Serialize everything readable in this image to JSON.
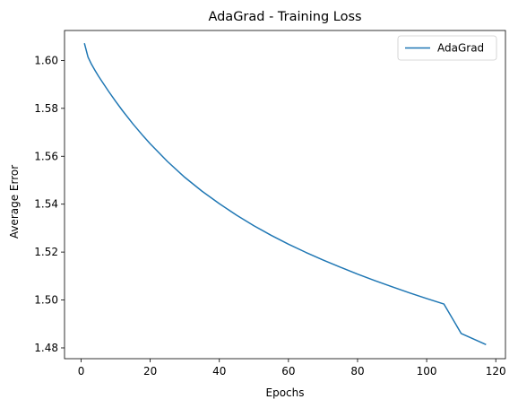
{
  "chart_data": {
    "type": "line",
    "title": "AdaGrad - Training Loss",
    "xlabel": "Epochs",
    "ylabel": "Average Error",
    "xlim": [
      -4.8,
      122.8
    ],
    "ylim": [
      1.4755,
      1.6125
    ],
    "xticks": [
      0,
      20,
      40,
      60,
      80,
      100,
      120
    ],
    "yticks": [
      1.48,
      1.5,
      1.52,
      1.54,
      1.56,
      1.58,
      1.6
    ],
    "xtick_labels": [
      "0",
      "20",
      "40",
      "60",
      "80",
      "100",
      "120"
    ],
    "ytick_labels": [
      "1.48",
      "1.50",
      "1.52",
      "1.54",
      "1.56",
      "1.58",
      "1.60"
    ],
    "grid": false,
    "legend_position": "top-right",
    "series": [
      {
        "name": "AdaGrad",
        "color": "#1f77b4",
        "x": [
          1,
          2,
          3,
          4,
          5,
          6,
          8,
          10,
          12,
          15,
          18,
          20,
          25,
          30,
          35,
          40,
          45,
          50,
          55,
          60,
          65,
          70,
          75,
          80,
          85,
          90,
          95,
          100,
          105,
          110,
          117
        ],
        "y": [
          1.6069,
          1.6014,
          1.5984,
          1.5959,
          1.5935,
          1.5913,
          1.587,
          1.5829,
          1.579,
          1.5735,
          1.5684,
          1.5652,
          1.5578,
          1.5512,
          1.5454,
          1.5402,
          1.5354,
          1.531,
          1.527,
          1.5233,
          1.5199,
          1.5167,
          1.5137,
          1.5108,
          1.5081,
          1.5055,
          1.503,
          1.5006,
          1.4983,
          1.486,
          1.4815
        ]
      }
    ]
  }
}
